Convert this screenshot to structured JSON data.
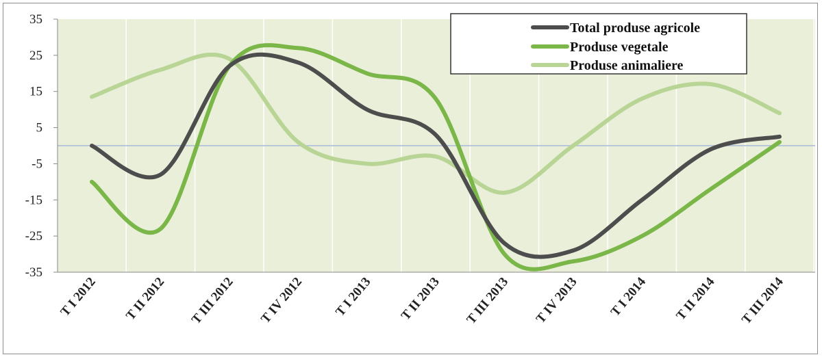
{
  "chart_data": {
    "type": "line",
    "categories": [
      "T I 2012",
      "T II 2012",
      "T III 2012",
      "T IV 2012",
      "T I 2013",
      "T II 2013",
      "T III 2013",
      "T IV 2013",
      "T I 2014",
      "T II 2014",
      "T III 2014"
    ],
    "series": [
      {
        "name": "Total produse agricole",
        "color": "#4d4d4d",
        "values": [
          0,
          -8,
          22,
          23,
          10,
          3,
          -27,
          -29,
          -15,
          -1,
          2.5
        ]
      },
      {
        "name": "Produse vegetale",
        "color": "#7ab648",
        "values": [
          -10,
          -23,
          22,
          27,
          20,
          13,
          -30,
          -32,
          -25,
          -12,
          1
        ]
      },
      {
        "name": "Produse animaliere",
        "color": "#b9d595",
        "values": [
          13.5,
          21,
          24,
          1,
          -5,
          -3,
          -13,
          0,
          13,
          17,
          9
        ]
      }
    ],
    "yticks": [
      "35",
      "25",
      "15",
      "5",
      "-5",
      "-15",
      "-25",
      "-35"
    ],
    "ylim": [
      -35,
      35
    ],
    "grid": "vertical",
    "reference_line": 0,
    "legend_position": "top-right"
  }
}
